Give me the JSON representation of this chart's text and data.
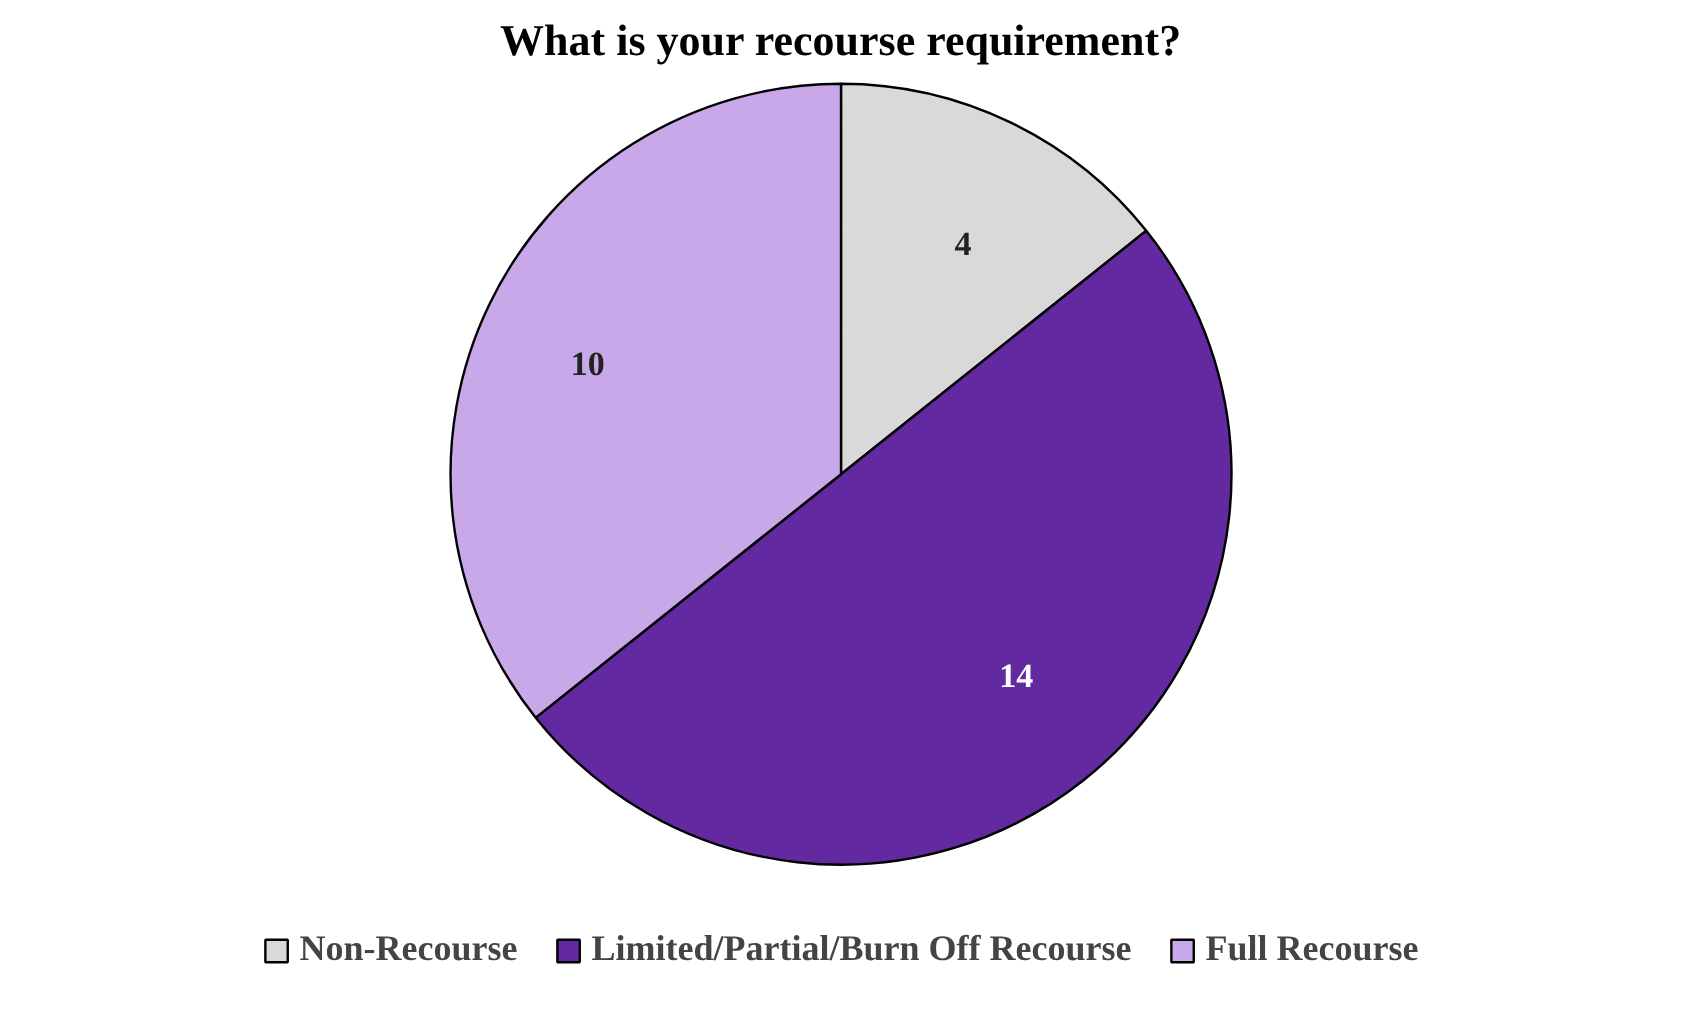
{
  "chart_data": {
    "type": "pie",
    "title": "What is your recourse requirement?",
    "categories": [
      "Non-Recourse",
      "Limited/Partial/Burn Off Recourse",
      "Full Recourse"
    ],
    "values": [
      4,
      14,
      10
    ],
    "colors": [
      "#d9d9d9",
      "#6229a0",
      "#c8a8e8"
    ],
    "data_labels": true,
    "legend": "bottom"
  }
}
